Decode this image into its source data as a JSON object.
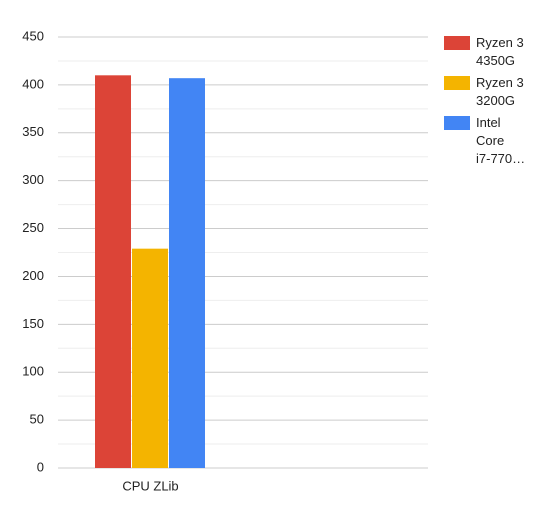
{
  "chart_data": {
    "type": "bar",
    "categories": [
      "CPU ZLib",
      null
    ],
    "series": [
      {
        "name": "Ryzen 3 4350G",
        "color": "#dc4437",
        "values": [
          410,
          null
        ]
      },
      {
        "name": "Ryzen 3 3200G",
        "color": "#f4b400",
        "values": [
          229,
          null
        ]
      },
      {
        "name": "Intel Core i7-770…",
        "color": "#4285f4",
        "values": [
          407,
          null
        ]
      }
    ],
    "ylim": [
      0,
      450
    ],
    "yticks": [
      0,
      50,
      100,
      150,
      200,
      250,
      300,
      350,
      400,
      450
    ],
    "grid": true,
    "legend": "right"
  }
}
